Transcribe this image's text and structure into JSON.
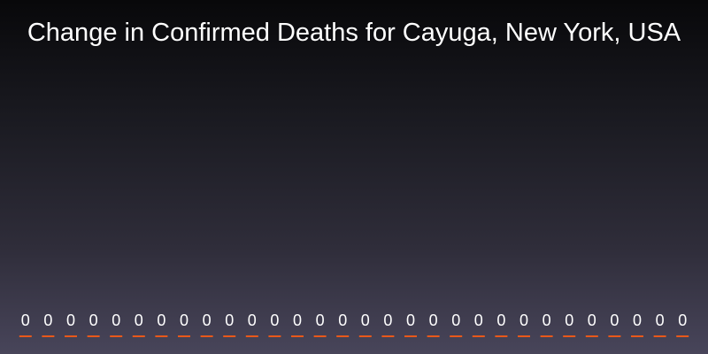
{
  "title": "Change in Confirmed Deaths for Cayuga, New York, USA",
  "chart_data": {
    "type": "bar",
    "title": "Change in Confirmed Deaths for Cayuga, New York, USA",
    "values": [
      0,
      0,
      0,
      0,
      0,
      0,
      0,
      0,
      0,
      0,
      0,
      0,
      0,
      0,
      0,
      0,
      0,
      0,
      0,
      0,
      0,
      0,
      0,
      0,
      0,
      0,
      0,
      0,
      0,
      0
    ],
    "data_labels": [
      "0",
      "0",
      "0",
      "0",
      "0",
      "0",
      "0",
      "0",
      "0",
      "0",
      "0",
      "0",
      "0",
      "0",
      "0",
      "0",
      "0",
      "0",
      "0",
      "0",
      "0",
      "0",
      "0",
      "0",
      "0",
      "0",
      "0",
      "0",
      "0",
      "0"
    ],
    "bar_color": "#e8581a",
    "label_color": "#ffffff",
    "grid": false,
    "legend": "none"
  }
}
